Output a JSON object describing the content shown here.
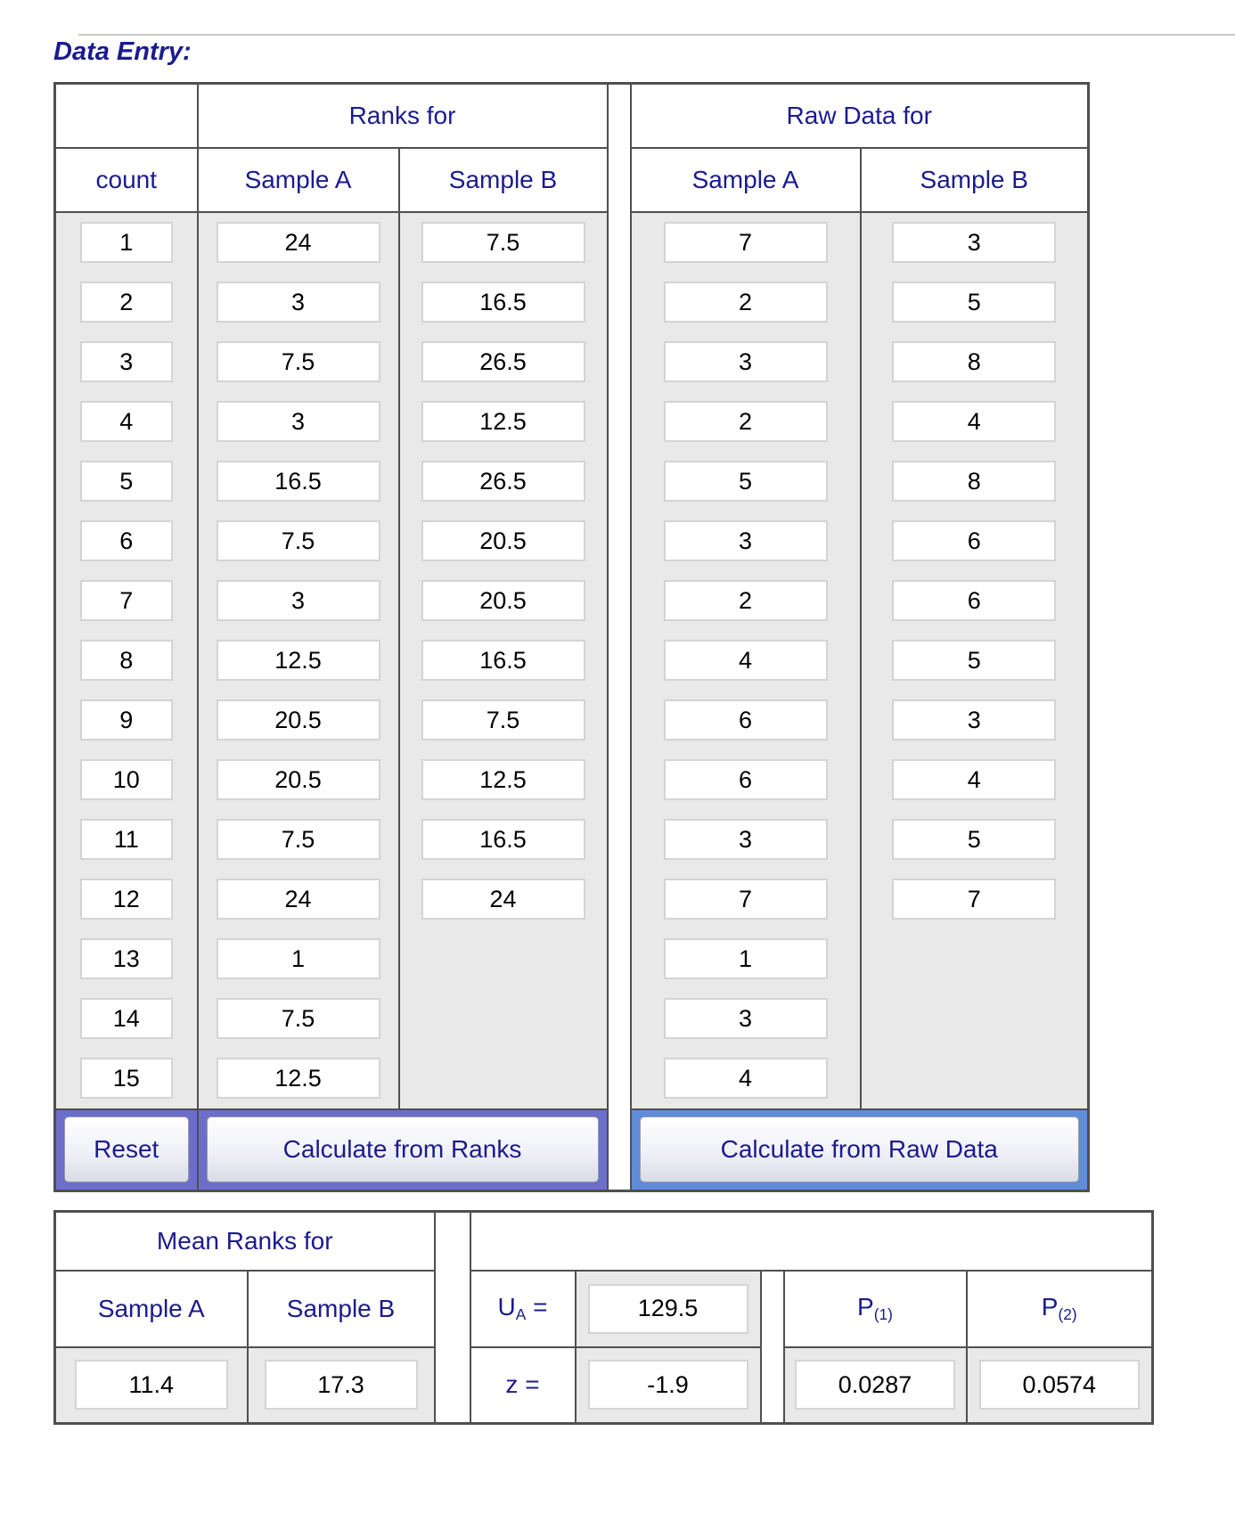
{
  "title": "Data Entry:",
  "entry": {
    "ranks_group_header": "Ranks for",
    "raw_group_header": "Raw Data for",
    "count_header": "count",
    "ranks_sample_a_header": "Sample A",
    "ranks_sample_b_header": "Sample B",
    "raw_sample_a_header": "Sample A",
    "raw_sample_b_header": "Sample B",
    "counts": [
      "1",
      "2",
      "3",
      "4",
      "5",
      "6",
      "7",
      "8",
      "9",
      "10",
      "11",
      "12",
      "13",
      "14",
      "15"
    ],
    "ranks_a": [
      "24",
      "3",
      "7.5",
      "3",
      "16.5",
      "7.5",
      "3",
      "12.5",
      "20.5",
      "20.5",
      "7.5",
      "24",
      "1",
      "7.5",
      "12.5"
    ],
    "ranks_b": [
      "7.5",
      "16.5",
      "26.5",
      "12.5",
      "26.5",
      "20.5",
      "20.5",
      "16.5",
      "7.5",
      "12.5",
      "16.5",
      "24"
    ],
    "raw_a": [
      "7",
      "2",
      "3",
      "2",
      "5",
      "3",
      "2",
      "4",
      "6",
      "6",
      "3",
      "7",
      "1",
      "3",
      "4"
    ],
    "raw_b": [
      "3",
      "5",
      "8",
      "4",
      "8",
      "6",
      "6",
      "5",
      "3",
      "4",
      "5",
      "7"
    ],
    "reset_label": "Reset",
    "calc_ranks_label": "Calculate from Ranks",
    "calc_raw_label": "Calculate from Raw Data"
  },
  "results": {
    "mean_ranks_header": "Mean Ranks for",
    "sample_a_header": "Sample A",
    "sample_b_header": "Sample B",
    "mean_a": "11.4",
    "mean_b": "17.3",
    "ua_base": "U",
    "ua_sub": "A",
    "eq": "=",
    "ua_value": "129.5",
    "z_label": "z =",
    "z_value": "-1.9",
    "p_base": "P",
    "p1_sub": "(1)",
    "p2_sub": "(2)",
    "p1_value": "0.0287",
    "p2_value": "0.0574"
  },
  "colors": {
    "navy": "#1b1b8e",
    "border": "#4f4f4f",
    "cellgray": "#e9e9e9",
    "periwinkle": "#6b6fca",
    "blue": "#5f8dda"
  }
}
